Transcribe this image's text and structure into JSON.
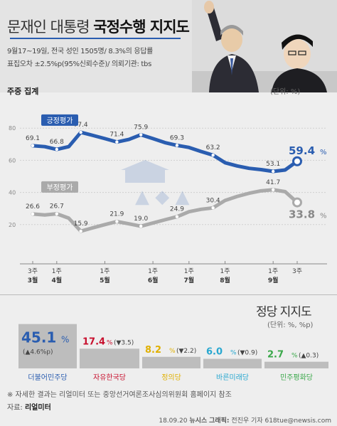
{
  "header": {
    "title_plain": "문재인 대통령",
    "title_bold": "국정수행 지지도",
    "survey_line1": "9월17~19일, 전국 성인 1505명/ 8.3%의 응답률",
    "survey_line2": "표집오차 ±2.5%p(95%신뢰수준)/ 의뢰기관: tbs"
  },
  "colors": {
    "positive": "#2a5db0",
    "negative": "#aaaaaa",
    "accent": "#2a5db0"
  },
  "chart_data": [
    {
      "type": "line",
      "subtitle": "주중 집계",
      "unit": "(단위: %)",
      "ylim": [
        0,
        100
      ],
      "yticks": [
        "80",
        "60",
        "40",
        "20"
      ],
      "x_tick_labels": [
        {
          "week": "3주",
          "month": "3월"
        },
        {
          "week": "1주",
          "month": "4월"
        },
        {
          "week": "1주",
          "month": "5월"
        },
        {
          "week": "1주",
          "month": "6월"
        },
        {
          "week": "1주",
          "month": "7월"
        },
        {
          "week": "1주",
          "month": "8월"
        },
        {
          "week": "1주",
          "month": "9월"
        },
        {
          "week": "3주",
          "month": ""
        }
      ],
      "series": [
        {
          "name": "긍정평가",
          "color": "#2a5db0",
          "values": [
            69.1,
            68.5,
            66.8,
            68.5,
            77.4,
            75.5,
            73.5,
            71.4,
            73.0,
            75.9,
            73.5,
            71.0,
            69.3,
            68.0,
            65.5,
            63.2,
            58.5,
            56.5,
            55.0,
            54.2,
            53.1,
            54.0,
            59.4
          ],
          "labels": [
            {
              "i": 0,
              "text": "69.1"
            },
            {
              "i": 2,
              "text": "66.8"
            },
            {
              "i": 4,
              "text": "77.4"
            },
            {
              "i": 7,
              "text": "71.4"
            },
            {
              "i": 9,
              "text": "75.9"
            },
            {
              "i": 12,
              "text": "69.3"
            },
            {
              "i": 15,
              "text": "63.2"
            },
            {
              "i": 20,
              "text": "53.1"
            }
          ],
          "last_label": "59.4"
        },
        {
          "name": "부정평가",
          "color": "#aaaaaa",
          "values": [
            26.6,
            26.0,
            26.7,
            24.0,
            15.9,
            18.0,
            20.0,
            21.9,
            20.5,
            19.0,
            21.0,
            23.0,
            24.9,
            28.0,
            29.5,
            30.4,
            35.0,
            37.5,
            39.5,
            41.0,
            41.7,
            40.5,
            33.8
          ],
          "labels": [
            {
              "i": 0,
              "text": "26.6"
            },
            {
              "i": 2,
              "text": "26.7"
            },
            {
              "i": 4,
              "text": "15.9"
            },
            {
              "i": 7,
              "text": "21.9"
            },
            {
              "i": 9,
              "text": "19.0"
            },
            {
              "i": 12,
              "text": "24.9"
            },
            {
              "i": 15,
              "text": "30.4"
            },
            {
              "i": 20,
              "text": "41.7"
            }
          ],
          "last_label": "33.8"
        }
      ]
    },
    {
      "type": "bar",
      "title": "정당 지지도",
      "unit": "(단위: %, %p)",
      "bars": [
        {
          "party": "더불어민주당",
          "value": 45.1,
          "value_text": "45.1",
          "change": "(▲4.6%p)",
          "color": "#2a5db0"
        },
        {
          "party": "자유한국당",
          "value": 17.4,
          "value_text": "17.4",
          "change": "(▼3.5)",
          "color": "#c8102e"
        },
        {
          "party": "정의당",
          "value": 8.2,
          "value_text": "8.2",
          "change": "(▼2.2)",
          "color": "#e0b000"
        },
        {
          "party": "바른미래당",
          "value": 6.0,
          "value_text": "6.0",
          "change": "(▼0.9)",
          "color": "#2aa8d0"
        },
        {
          "party": "민주평화당",
          "value": 2.7,
          "value_text": "2.7",
          "change": "(▲0.3)",
          "color": "#3aa84a"
        }
      ]
    }
  ],
  "footer": {
    "footnote": "※ 자세한 결과는 리얼미터 또는 중앙선거여론조사심의위원회 홈페이지 참조",
    "source_label": "자료:",
    "source_value": "리얼미터",
    "credit_date": "18.09.20",
    "credit_news": "뉴시스",
    "credit_graphic": "그래픽:",
    "credit_author": "전진우 기자 618tue@newsis.com"
  }
}
